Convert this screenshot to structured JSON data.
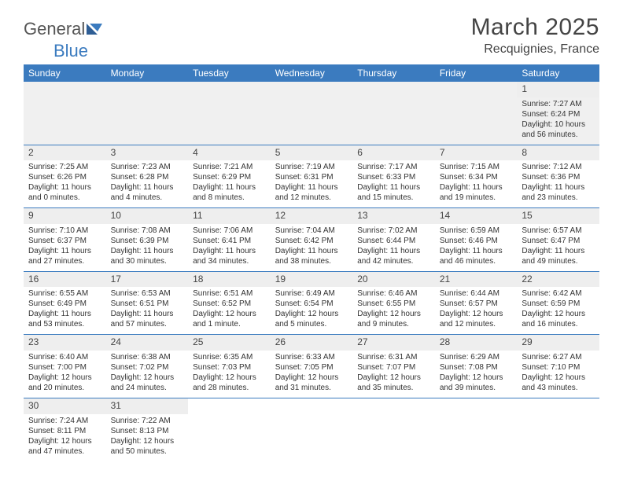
{
  "logo": {
    "part1": "General",
    "part2": "Blue"
  },
  "title": "March 2025",
  "location": "Recquignies, France",
  "colors": {
    "header_bg": "#3b7bbf",
    "header_fg": "#ffffff",
    "daynum_bg": "#eeeeee",
    "border": "#3b7bbf",
    "text": "#333333",
    "background": "#ffffff"
  },
  "calendar": {
    "day_headers": [
      "Sunday",
      "Monday",
      "Tuesday",
      "Wednesday",
      "Thursday",
      "Friday",
      "Saturday"
    ],
    "weeks": [
      [
        null,
        null,
        null,
        null,
        null,
        null,
        {
          "n": "1",
          "sr": "Sunrise: 7:27 AM",
          "ss": "Sunset: 6:24 PM",
          "dl": "Daylight: 10 hours and 56 minutes."
        }
      ],
      [
        {
          "n": "2",
          "sr": "Sunrise: 7:25 AM",
          "ss": "Sunset: 6:26 PM",
          "dl": "Daylight: 11 hours and 0 minutes."
        },
        {
          "n": "3",
          "sr": "Sunrise: 7:23 AM",
          "ss": "Sunset: 6:28 PM",
          "dl": "Daylight: 11 hours and 4 minutes."
        },
        {
          "n": "4",
          "sr": "Sunrise: 7:21 AM",
          "ss": "Sunset: 6:29 PM",
          "dl": "Daylight: 11 hours and 8 minutes."
        },
        {
          "n": "5",
          "sr": "Sunrise: 7:19 AM",
          "ss": "Sunset: 6:31 PM",
          "dl": "Daylight: 11 hours and 12 minutes."
        },
        {
          "n": "6",
          "sr": "Sunrise: 7:17 AM",
          "ss": "Sunset: 6:33 PM",
          "dl": "Daylight: 11 hours and 15 minutes."
        },
        {
          "n": "7",
          "sr": "Sunrise: 7:15 AM",
          "ss": "Sunset: 6:34 PM",
          "dl": "Daylight: 11 hours and 19 minutes."
        },
        {
          "n": "8",
          "sr": "Sunrise: 7:12 AM",
          "ss": "Sunset: 6:36 PM",
          "dl": "Daylight: 11 hours and 23 minutes."
        }
      ],
      [
        {
          "n": "9",
          "sr": "Sunrise: 7:10 AM",
          "ss": "Sunset: 6:37 PM",
          "dl": "Daylight: 11 hours and 27 minutes."
        },
        {
          "n": "10",
          "sr": "Sunrise: 7:08 AM",
          "ss": "Sunset: 6:39 PM",
          "dl": "Daylight: 11 hours and 30 minutes."
        },
        {
          "n": "11",
          "sr": "Sunrise: 7:06 AM",
          "ss": "Sunset: 6:41 PM",
          "dl": "Daylight: 11 hours and 34 minutes."
        },
        {
          "n": "12",
          "sr": "Sunrise: 7:04 AM",
          "ss": "Sunset: 6:42 PM",
          "dl": "Daylight: 11 hours and 38 minutes."
        },
        {
          "n": "13",
          "sr": "Sunrise: 7:02 AM",
          "ss": "Sunset: 6:44 PM",
          "dl": "Daylight: 11 hours and 42 minutes."
        },
        {
          "n": "14",
          "sr": "Sunrise: 6:59 AM",
          "ss": "Sunset: 6:46 PM",
          "dl": "Daylight: 11 hours and 46 minutes."
        },
        {
          "n": "15",
          "sr": "Sunrise: 6:57 AM",
          "ss": "Sunset: 6:47 PM",
          "dl": "Daylight: 11 hours and 49 minutes."
        }
      ],
      [
        {
          "n": "16",
          "sr": "Sunrise: 6:55 AM",
          "ss": "Sunset: 6:49 PM",
          "dl": "Daylight: 11 hours and 53 minutes."
        },
        {
          "n": "17",
          "sr": "Sunrise: 6:53 AM",
          "ss": "Sunset: 6:51 PM",
          "dl": "Daylight: 11 hours and 57 minutes."
        },
        {
          "n": "18",
          "sr": "Sunrise: 6:51 AM",
          "ss": "Sunset: 6:52 PM",
          "dl": "Daylight: 12 hours and 1 minute."
        },
        {
          "n": "19",
          "sr": "Sunrise: 6:49 AM",
          "ss": "Sunset: 6:54 PM",
          "dl": "Daylight: 12 hours and 5 minutes."
        },
        {
          "n": "20",
          "sr": "Sunrise: 6:46 AM",
          "ss": "Sunset: 6:55 PM",
          "dl": "Daylight: 12 hours and 9 minutes."
        },
        {
          "n": "21",
          "sr": "Sunrise: 6:44 AM",
          "ss": "Sunset: 6:57 PM",
          "dl": "Daylight: 12 hours and 12 minutes."
        },
        {
          "n": "22",
          "sr": "Sunrise: 6:42 AM",
          "ss": "Sunset: 6:59 PM",
          "dl": "Daylight: 12 hours and 16 minutes."
        }
      ],
      [
        {
          "n": "23",
          "sr": "Sunrise: 6:40 AM",
          "ss": "Sunset: 7:00 PM",
          "dl": "Daylight: 12 hours and 20 minutes."
        },
        {
          "n": "24",
          "sr": "Sunrise: 6:38 AM",
          "ss": "Sunset: 7:02 PM",
          "dl": "Daylight: 12 hours and 24 minutes."
        },
        {
          "n": "25",
          "sr": "Sunrise: 6:35 AM",
          "ss": "Sunset: 7:03 PM",
          "dl": "Daylight: 12 hours and 28 minutes."
        },
        {
          "n": "26",
          "sr": "Sunrise: 6:33 AM",
          "ss": "Sunset: 7:05 PM",
          "dl": "Daylight: 12 hours and 31 minutes."
        },
        {
          "n": "27",
          "sr": "Sunrise: 6:31 AM",
          "ss": "Sunset: 7:07 PM",
          "dl": "Daylight: 12 hours and 35 minutes."
        },
        {
          "n": "28",
          "sr": "Sunrise: 6:29 AM",
          "ss": "Sunset: 7:08 PM",
          "dl": "Daylight: 12 hours and 39 minutes."
        },
        {
          "n": "29",
          "sr": "Sunrise: 6:27 AM",
          "ss": "Sunset: 7:10 PM",
          "dl": "Daylight: 12 hours and 43 minutes."
        }
      ],
      [
        {
          "n": "30",
          "sr": "Sunrise: 7:24 AM",
          "ss": "Sunset: 8:11 PM",
          "dl": "Daylight: 12 hours and 47 minutes."
        },
        {
          "n": "31",
          "sr": "Sunrise: 7:22 AM",
          "ss": "Sunset: 8:13 PM",
          "dl": "Daylight: 12 hours and 50 minutes."
        },
        null,
        null,
        null,
        null,
        null
      ]
    ]
  }
}
